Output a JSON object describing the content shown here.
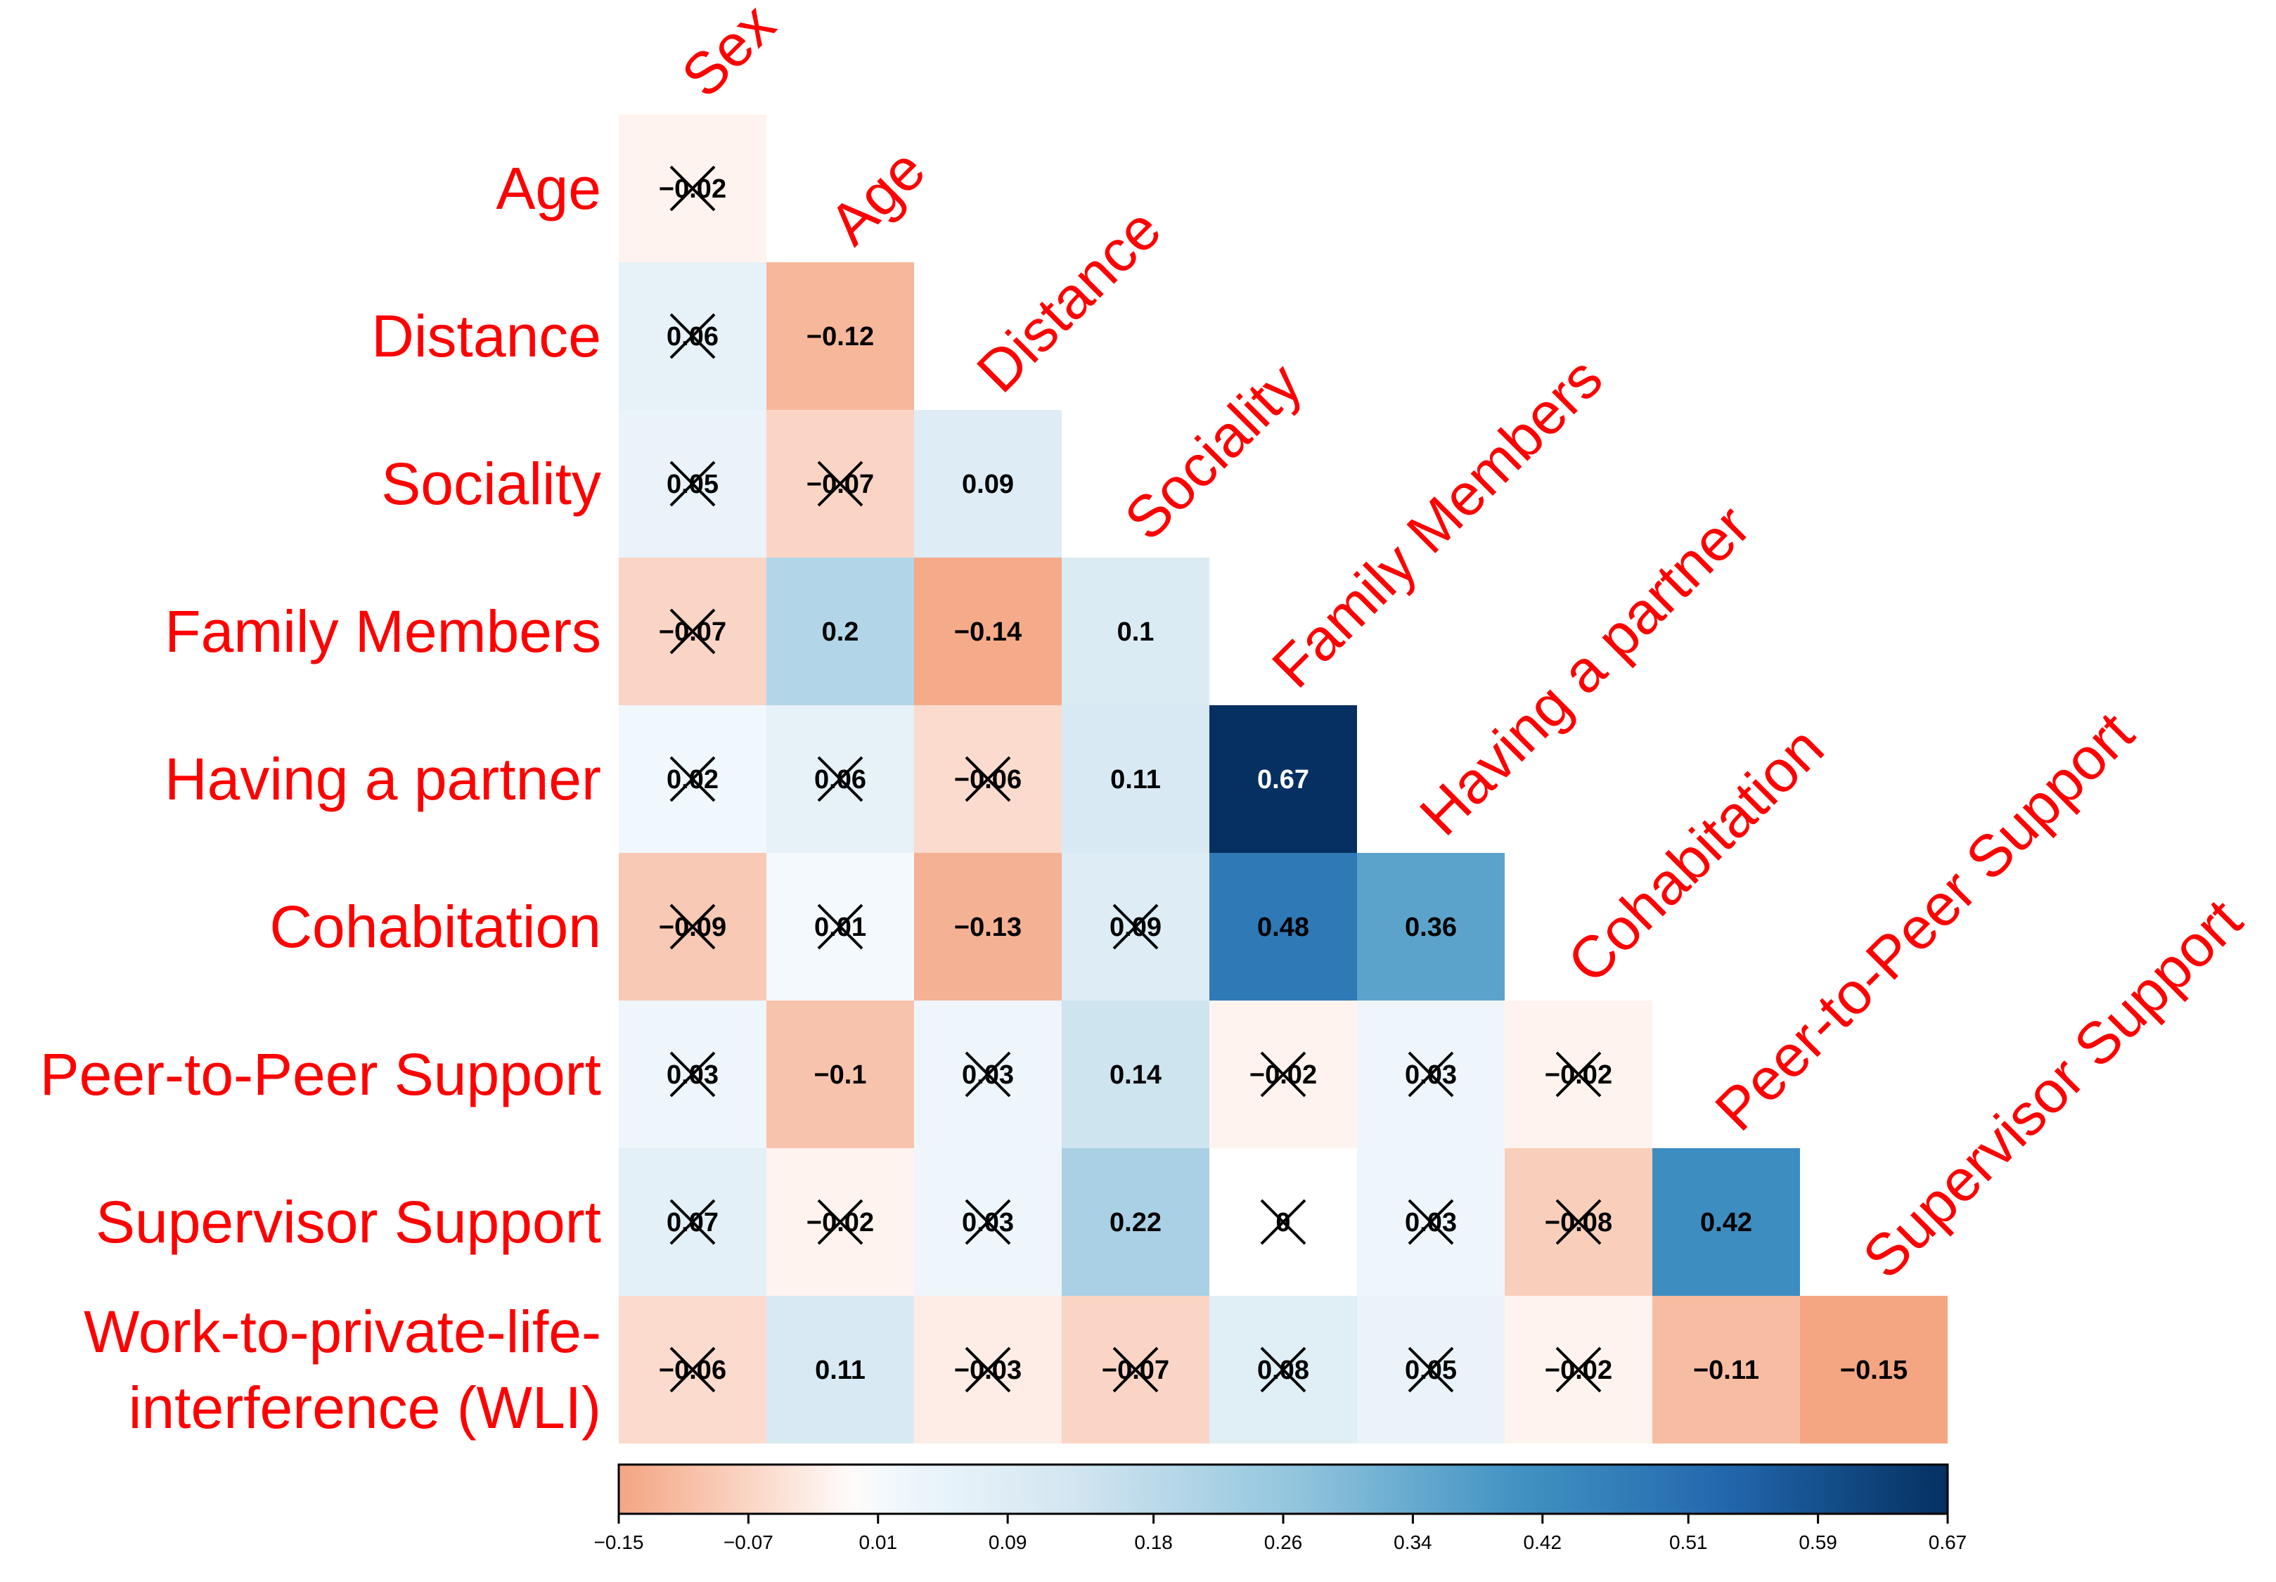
{
  "chart_data": {
    "type": "heatmap",
    "title": "",
    "variables": [
      "Sex",
      "Age",
      "Distance",
      "Sociality",
      "Family Members",
      "Having a partner",
      "Cohabitation",
      "Peer-to-Peer Support",
      "Supervisor Support",
      "Work-to-private-life interference (WLI)"
    ],
    "row_labels": [
      [
        "Age"
      ],
      [
        "Distance"
      ],
      [
        "Sociality"
      ],
      [
        "Family Members"
      ],
      [
        "Having a partner"
      ],
      [
        "Cohabitation"
      ],
      [
        "Peer-to-Peer Support"
      ],
      [
        "Supervisor Support"
      ],
      [
        "Work-to-private-life-",
        "interference (WLI)"
      ]
    ],
    "column_labels": [
      "Sex",
      "Age",
      "Distance",
      "Sociality",
      "Family Members",
      "Having a partner",
      "Cohabitation",
      "Peer-to-Peer Support",
      "Supervisor Support"
    ],
    "label_color": "#ff0000",
    "matrix": [
      [
        -0.02
      ],
      [
        0.06,
        -0.12
      ],
      [
        0.05,
        -0.07,
        0.09
      ],
      [
        -0.07,
        0.2,
        -0.14,
        0.1
      ],
      [
        0.02,
        0.06,
        -0.06,
        0.11,
        0.67
      ],
      [
        -0.09,
        0.01,
        -0.13,
        0.09,
        0.48,
        0.36
      ],
      [
        0.03,
        -0.1,
        0.03,
        0.14,
        -0.02,
        0.03,
        -0.02
      ],
      [
        0.07,
        -0.02,
        0.03,
        0.22,
        0,
        0.03,
        -0.08,
        0.42
      ],
      [
        -0.06,
        0.11,
        -0.03,
        -0.07,
        0.08,
        0.05,
        -0.02,
        -0.11,
        -0.15
      ]
    ],
    "cell_labels": [
      [
        "−0.02"
      ],
      [
        "0.06",
        "−0.12"
      ],
      [
        "0.05",
        "−0.07",
        "0.09"
      ],
      [
        "−0.07",
        "0.2",
        "−0.14",
        "0.1"
      ],
      [
        "0.02",
        "0.06",
        "−0.06",
        "0.11",
        "0.67"
      ],
      [
        "−0.09",
        "0.01",
        "−0.13",
        "0.09",
        "0.48",
        "0.36"
      ],
      [
        "0.03",
        "−0.1",
        "0.03",
        "0.14",
        "−0.02",
        "0.03",
        "−0.02"
      ],
      [
        "0.07",
        "−0.02",
        "0.03",
        "0.22",
        "0",
        "0.03",
        "−0.08",
        "0.42"
      ],
      [
        "−0.06",
        "0.11",
        "−0.03",
        "−0.07",
        "0.08",
        "0.05",
        "−0.02",
        "−0.11",
        "−0.15"
      ]
    ],
    "crossed_out": [
      [
        true
      ],
      [
        true,
        false
      ],
      [
        true,
        true,
        false
      ],
      [
        true,
        false,
        false,
        false
      ],
      [
        true,
        true,
        true,
        false,
        false
      ],
      [
        true,
        true,
        false,
        true,
        false,
        false
      ],
      [
        true,
        false,
        true,
        false,
        true,
        true,
        true
      ],
      [
        true,
        true,
        true,
        false,
        true,
        true,
        true,
        false
      ],
      [
        true,
        false,
        true,
        true,
        true,
        true,
        true,
        false,
        false
      ]
    ],
    "colorbar": {
      "min": -0.15,
      "max": 0.67,
      "ticks": [
        -0.15,
        -0.07,
        0.01,
        0.09,
        0.18,
        0.26,
        0.34,
        0.42,
        0.51,
        0.59,
        0.67
      ],
      "tick_labels": [
        "−0.15",
        "−0.07",
        "0.01",
        "0.09",
        "0.18",
        "0.26",
        "0.34",
        "0.42",
        "0.51",
        "0.59",
        "0.67"
      ],
      "placement": "bottom"
    },
    "colormap": {
      "negative_end": "#f4a582",
      "zero": "#ffffff",
      "positive_stops": [
        "#f7fbff",
        "#d1e5f0",
        "#92c5de",
        "#4393c3",
        "#2166ac",
        "#053061"
      ]
    }
  }
}
